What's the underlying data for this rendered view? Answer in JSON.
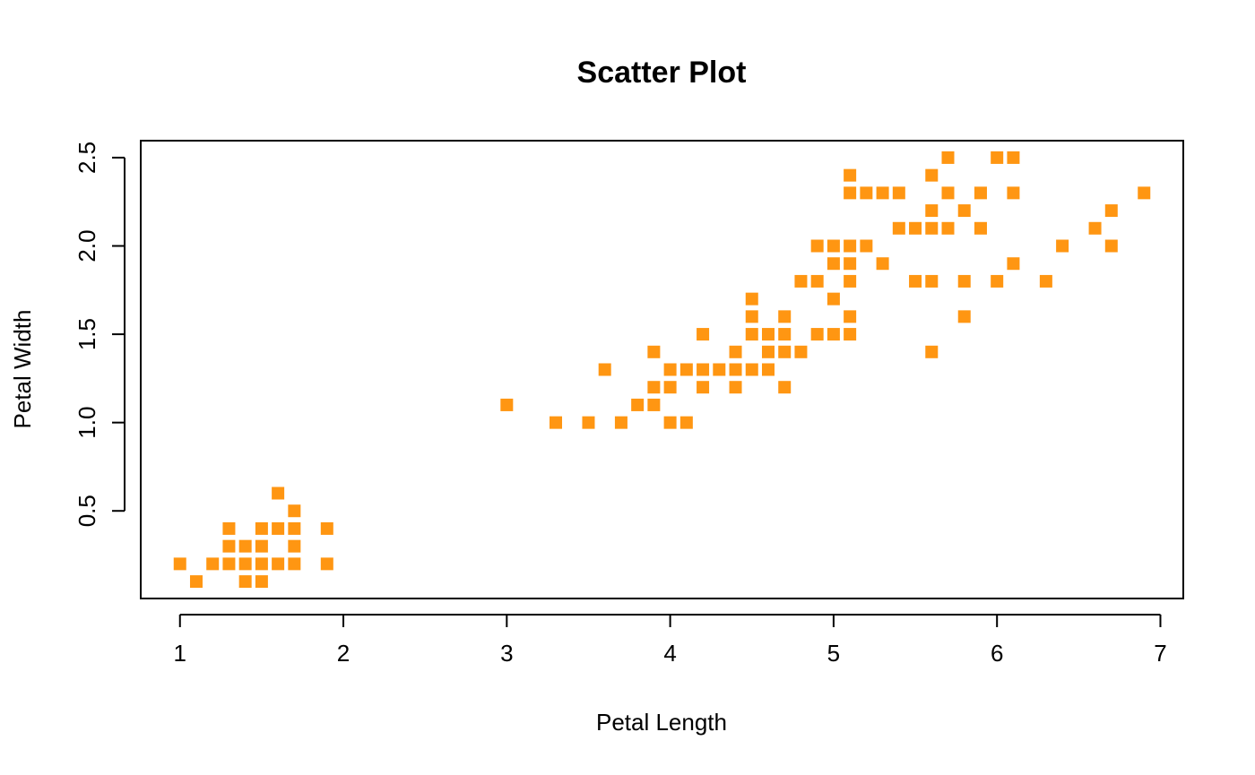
{
  "chart_data": {
    "type": "scatter",
    "title": "Scatter Plot",
    "xlabel": "Petal Length",
    "ylabel": "Petal Width",
    "xlim": [
      0.76,
      7.14
    ],
    "ylim": [
      0.004,
      2.596
    ],
    "xticks": [
      1,
      2,
      3,
      4,
      5,
      6,
      7
    ],
    "xtick_labels": [
      "1",
      "2",
      "3",
      "4",
      "5",
      "6",
      "7"
    ],
    "yticks": [
      0.5,
      1.0,
      1.5,
      2.0,
      2.5
    ],
    "ytick_labels": [
      "0.5",
      "1.0",
      "1.5",
      "2.0",
      "2.5"
    ],
    "grid": false,
    "marker": "square",
    "marker_color": "#FF9612",
    "points": [
      [
        1.0,
        0.2
      ],
      [
        1.1,
        0.1
      ],
      [
        1.2,
        0.2
      ],
      [
        1.3,
        0.2
      ],
      [
        1.3,
        0.3
      ],
      [
        1.3,
        0.4
      ],
      [
        1.4,
        0.1
      ],
      [
        1.4,
        0.2
      ],
      [
        1.4,
        0.3
      ],
      [
        1.5,
        0.1
      ],
      [
        1.5,
        0.2
      ],
      [
        1.5,
        0.3
      ],
      [
        1.5,
        0.4
      ],
      [
        1.6,
        0.2
      ],
      [
        1.6,
        0.4
      ],
      [
        1.6,
        0.6
      ],
      [
        1.7,
        0.2
      ],
      [
        1.7,
        0.3
      ],
      [
        1.7,
        0.4
      ],
      [
        1.7,
        0.5
      ],
      [
        1.9,
        0.2
      ],
      [
        1.9,
        0.4
      ],
      [
        3.0,
        1.1
      ],
      [
        3.3,
        1.0
      ],
      [
        3.5,
        1.0
      ],
      [
        3.6,
        1.3
      ],
      [
        3.7,
        1.0
      ],
      [
        3.8,
        1.1
      ],
      [
        3.9,
        1.1
      ],
      [
        3.9,
        1.2
      ],
      [
        3.9,
        1.4
      ],
      [
        4.0,
        1.0
      ],
      [
        4.0,
        1.2
      ],
      [
        4.0,
        1.3
      ],
      [
        4.1,
        1.0
      ],
      [
        4.1,
        1.3
      ],
      [
        4.2,
        1.2
      ],
      [
        4.2,
        1.3
      ],
      [
        4.2,
        1.5
      ],
      [
        4.3,
        1.3
      ],
      [
        4.4,
        1.2
      ],
      [
        4.4,
        1.3
      ],
      [
        4.4,
        1.4
      ],
      [
        4.5,
        1.3
      ],
      [
        4.5,
        1.5
      ],
      [
        4.5,
        1.6
      ],
      [
        4.5,
        1.7
      ],
      [
        4.6,
        1.3
      ],
      [
        4.6,
        1.4
      ],
      [
        4.6,
        1.5
      ],
      [
        4.7,
        1.2
      ],
      [
        4.7,
        1.4
      ],
      [
        4.7,
        1.5
      ],
      [
        4.7,
        1.6
      ],
      [
        4.8,
        1.4
      ],
      [
        4.8,
        1.8
      ],
      [
        4.9,
        1.5
      ],
      [
        4.9,
        1.8
      ],
      [
        4.9,
        2.0
      ],
      [
        5.0,
        1.5
      ],
      [
        5.0,
        1.7
      ],
      [
        5.0,
        1.9
      ],
      [
        5.0,
        2.0
      ],
      [
        5.1,
        1.5
      ],
      [
        5.1,
        1.6
      ],
      [
        5.1,
        1.8
      ],
      [
        5.1,
        1.9
      ],
      [
        5.1,
        2.0
      ],
      [
        5.1,
        2.3
      ],
      [
        5.1,
        2.4
      ],
      [
        5.2,
        2.0
      ],
      [
        5.2,
        2.3
      ],
      [
        5.3,
        1.9
      ],
      [
        5.3,
        2.3
      ],
      [
        5.4,
        2.1
      ],
      [
        5.4,
        2.3
      ],
      [
        5.5,
        1.8
      ],
      [
        5.5,
        2.1
      ],
      [
        5.6,
        1.4
      ],
      [
        5.6,
        1.8
      ],
      [
        5.6,
        2.1
      ],
      [
        5.6,
        2.2
      ],
      [
        5.6,
        2.4
      ],
      [
        5.7,
        2.1
      ],
      [
        5.7,
        2.3
      ],
      [
        5.7,
        2.5
      ],
      [
        5.8,
        1.6
      ],
      [
        5.8,
        1.8
      ],
      [
        5.8,
        2.2
      ],
      [
        5.9,
        2.1
      ],
      [
        5.9,
        2.3
      ],
      [
        6.0,
        1.8
      ],
      [
        6.0,
        2.5
      ],
      [
        6.1,
        1.9
      ],
      [
        6.1,
        2.3
      ],
      [
        6.1,
        2.5
      ],
      [
        6.3,
        1.8
      ],
      [
        6.4,
        2.0
      ],
      [
        6.6,
        2.1
      ],
      [
        6.7,
        2.0
      ],
      [
        6.7,
        2.2
      ],
      [
        6.9,
        2.3
      ]
    ]
  }
}
